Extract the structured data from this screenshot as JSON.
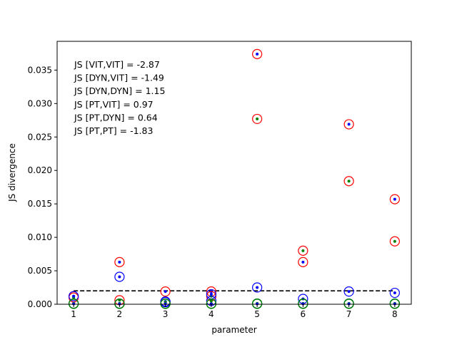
{
  "chart_data": {
    "type": "scatter",
    "title": "",
    "xlabel": "parameter",
    "ylabel": "JS divergence",
    "xlim": [
      0.64,
      8.36
    ],
    "ylim": [
      0,
      0.0393
    ],
    "xticks": [
      1,
      2,
      3,
      4,
      5,
      6,
      7,
      8
    ],
    "yticks": [
      0.0,
      0.005,
      0.01,
      0.015,
      0.02,
      0.025,
      0.03,
      0.035
    ],
    "ytick_labels": [
      "0.000",
      "0.005",
      "0.010",
      "0.015",
      "0.020",
      "0.025",
      "0.030",
      "0.035"
    ],
    "threshold": {
      "y": 0.002,
      "style": "dashed",
      "color": "#000000"
    },
    "annotations": [
      "JS [VIT,VIT] = -2.87",
      "JS [DYN,VIT] = -1.49",
      "JS [DYN,DYN] = 1.15",
      "JS [PT,VIT] = 0.97",
      "JS [PT,DYN] = 0.64",
      "JS [PT,PT] = -1.83"
    ],
    "series": [
      {
        "ring": "#ff0000",
        "dot": "#0000ff",
        "points": [
          [
            1,
            0.0012
          ],
          [
            2,
            0.0063
          ],
          [
            3,
            0.0019
          ],
          [
            4,
            0.0019
          ],
          [
            5,
            0.0374
          ],
          [
            6,
            0.0063
          ],
          [
            7,
            0.0269
          ],
          [
            8,
            0.0157
          ]
        ]
      },
      {
        "ring": "#ff0000",
        "dot": "#008000",
        "points": [
          [
            1,
            0.001
          ],
          [
            2,
            0.0006
          ],
          [
            3,
            0.0004
          ],
          [
            4,
            0.0012
          ],
          [
            5,
            0.0277
          ],
          [
            6,
            0.008
          ],
          [
            7,
            0.0184
          ],
          [
            8,
            0.0094
          ]
        ]
      },
      {
        "ring": "#0000ff",
        "dot": "#0000ff",
        "points": [
          [
            1,
            0.0012
          ],
          [
            2,
            0.0041
          ],
          [
            3,
            0.0004
          ],
          [
            4,
            0.0015
          ],
          [
            5,
            0.0025
          ],
          [
            6,
            0.0008
          ],
          [
            7,
            0.0019
          ],
          [
            8,
            0.0017
          ]
        ]
      },
      {
        "ring": "#0000ff",
        "dot": "#008000",
        "points": [
          [
            1,
            0.0001
          ],
          [
            2,
            0.0001
          ],
          [
            3,
            0.0003
          ],
          [
            4,
            0.0005
          ],
          [
            5,
            0.0001
          ],
          [
            6,
            0.0001
          ],
          [
            7,
            0.0001
          ],
          [
            8,
            0.0001
          ]
        ]
      },
      {
        "ring": "#008000",
        "dot": "#008000",
        "points": [
          [
            1,
            0.0001
          ],
          [
            2,
            0.0001
          ],
          [
            3,
            0.0001
          ],
          [
            4,
            0.0001
          ],
          [
            5,
            0.0001
          ],
          [
            6,
            0.0001
          ],
          [
            7,
            0.0001
          ],
          [
            8,
            0.0001
          ]
        ]
      },
      {
        "ring": "#008000",
        "dot": "#0000ff",
        "points": [
          [
            1,
            5e-05
          ],
          [
            2,
            5e-05
          ],
          [
            3,
            5e-05
          ],
          [
            4,
            5e-05
          ],
          [
            5,
            5e-05
          ],
          [
            6,
            5e-05
          ],
          [
            7,
            5e-05
          ],
          [
            8,
            5e-05
          ]
        ]
      }
    ]
  }
}
